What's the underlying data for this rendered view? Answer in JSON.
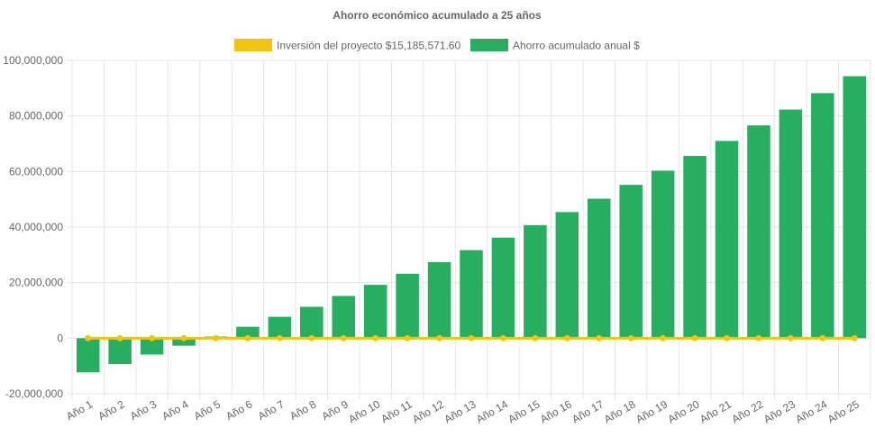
{
  "chart_data": {
    "type": "bar",
    "title": "Ahorro económico acumulado a 25 años",
    "categories": [
      "Año 1",
      "Año 2",
      "Año 3",
      "Año 4",
      "Año 5",
      "Año 6",
      "Año 7",
      "Año 8",
      "Año 9",
      "Año 10",
      "Año 11",
      "Año 12",
      "Año 13",
      "Año 14",
      "Año 15",
      "Año 16",
      "Año 17",
      "Año 18",
      "Año 19",
      "Año 20",
      "Año 21",
      "Año 22",
      "Año 23",
      "Año 24",
      "Año 25"
    ],
    "series": [
      {
        "name": "Inversión del proyecto $15,185,571.60",
        "type": "line",
        "color": "#f1c40f",
        "values": [
          0,
          0,
          0,
          0,
          0,
          0,
          0,
          0,
          0,
          0,
          0,
          0,
          0,
          0,
          0,
          0,
          0,
          0,
          0,
          0,
          0,
          0,
          0,
          0,
          0
        ]
      },
      {
        "name": "Ahorro acumulado anual $",
        "type": "bar",
        "color": "#27ae60",
        "values": [
          -12300000,
          -9300000,
          -5900000,
          -2700000,
          600000,
          4100000,
          7700000,
          11300000,
          15200000,
          19200000,
          23200000,
          27400000,
          31700000,
          36200000,
          40700000,
          45400000,
          50200000,
          55200000,
          60300000,
          65600000,
          71000000,
          76600000,
          82300000,
          88200000,
          94300000
        ]
      }
    ],
    "ylim": [
      -20000000,
      100000000
    ],
    "yticks": [
      100000000,
      80000000,
      60000000,
      40000000,
      20000000,
      0,
      -20000000
    ],
    "ytick_labels": [
      "100,000,000",
      "80,000,000",
      "60,000,000",
      "40,000,000",
      "20,000,000",
      "0",
      "-20,000,000"
    ],
    "grid": true,
    "legend_position": "top-center",
    "xlabel": "",
    "ylabel": ""
  }
}
